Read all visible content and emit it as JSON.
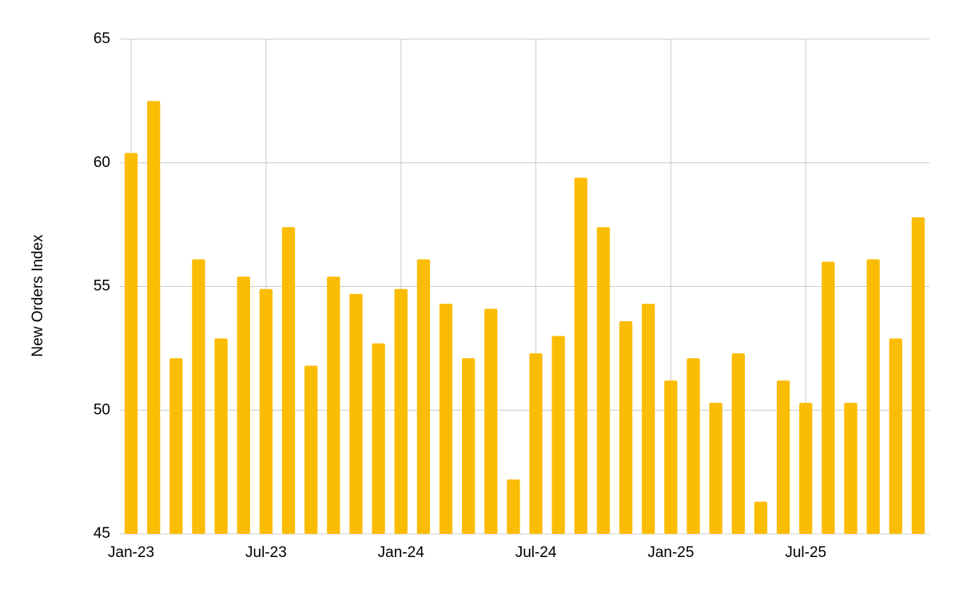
{
  "chart_data": {
    "type": "bar",
    "y_label": "New Orders Index",
    "categories": [
      "Jan-23",
      null,
      null,
      null,
      null,
      null,
      "Jul-23",
      null,
      null,
      null,
      null,
      null,
      "Jan-24",
      null,
      null,
      null,
      null,
      null,
      "Jul-24",
      null,
      null,
      null,
      null,
      null,
      "Jan-25",
      null,
      null,
      null,
      null,
      null,
      "Jul-25",
      null,
      null,
      null,
      null,
      null
    ],
    "values": [
      60.4,
      62.5,
      52.1,
      56.1,
      52.9,
      55.4,
      54.9,
      57.4,
      51.8,
      55.4,
      54.7,
      52.7,
      54.9,
      56.1,
      54.3,
      52.1,
      54.1,
      47.2,
      52.3,
      53.0,
      59.4,
      57.4,
      53.6,
      54.3,
      51.2,
      52.1,
      50.3,
      52.3,
      46.3,
      51.2,
      50.3,
      56.0,
      50.3,
      56.1,
      52.9,
      57.8
    ],
    "color": "#fbbc04",
    "ylim": [
      45,
      65
    ],
    "yticks": [
      45,
      50,
      55,
      60,
      65
    ],
    "grid": true
  }
}
